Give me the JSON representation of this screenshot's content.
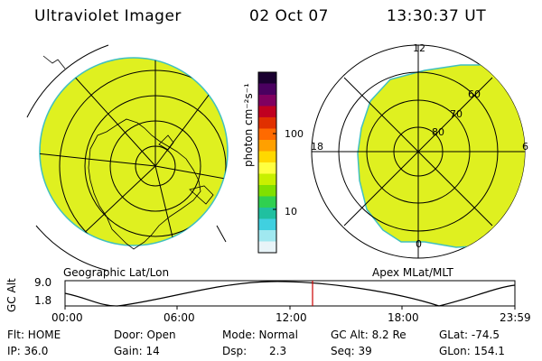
{
  "header": {
    "title": "Ultraviolet Imager",
    "date": "02 Oct 07",
    "time": "13:30:37 UT"
  },
  "colorbar": {
    "unit_label": "photon cm⁻²s⁻¹",
    "ticks": [
      "100",
      "10"
    ],
    "colors": [
      "#1a0030",
      "#4a0060",
      "#800060",
      "#c00020",
      "#e03000",
      "#ff6a00",
      "#ffa000",
      "#ffd800",
      "#ffff40",
      "#c8f000",
      "#80e000",
      "#30d050",
      "#20c0a0",
      "#40d0e0",
      "#a0e8f0",
      "#e8f4f8"
    ]
  },
  "left_panel": {
    "caption": "Geographic Lat/Lon",
    "fill_color": "#dff020"
  },
  "right_panel": {
    "caption": "Apex MLat/MLT",
    "fill_color": "#dff020",
    "mlt_labels": {
      "top": "12",
      "left": "18",
      "right": "6",
      "bottom": "0"
    },
    "mlat_labels": [
      "80",
      "70",
      "60"
    ]
  },
  "altitude_plot": {
    "ylabel": "GC Alt",
    "yticks": [
      "9.0",
      "1.8"
    ],
    "xticks": [
      "00:00",
      "06:00",
      "12:00",
      "18:00",
      "23:59"
    ],
    "marker_color": "#cc0000"
  },
  "info": {
    "row1": {
      "flt": "Flt: HOME",
      "door": "Door: Open",
      "mode": "Mode: Normal",
      "gcalt": "GC Alt: 8.2 Re",
      "glat": "GLat: -74.5"
    },
    "row2": {
      "ip": "IP: 36.0",
      "gain": "Gain: 14",
      "dsp_label": "Dsp:",
      "dsp_value": "2.3",
      "seq": "Seq: 39",
      "glon": "GLon: 154.1"
    }
  }
}
